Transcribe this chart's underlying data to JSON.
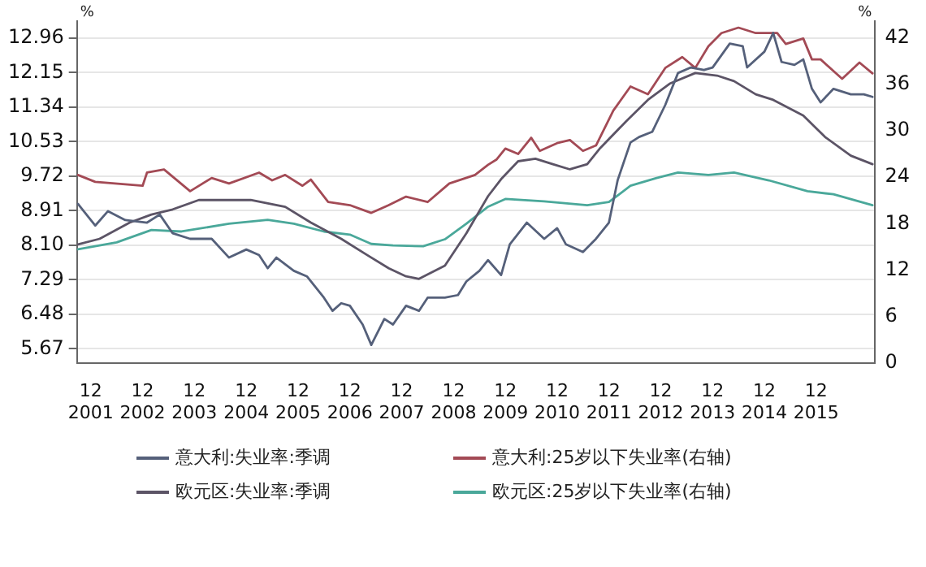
{
  "chart_data": {
    "type": "line",
    "ylabel": "%",
    "y2label": "%",
    "xlim": [
      "2001-08-25",
      "2017-01-20"
    ],
    "xticks": [
      {
        "value": "2001-12-01",
        "label": "12\n2001"
      },
      {
        "value": "2002-12-01",
        "label": "12\n2002"
      },
      {
        "value": "2003-12-01",
        "label": "12\n2003"
      },
      {
        "value": "2004-12-01",
        "label": "12\n2004"
      },
      {
        "value": "2005-12-01",
        "label": "12\n2005"
      },
      {
        "value": "2006-12-01",
        "label": "12\n2006"
      },
      {
        "value": "2007-12-01",
        "label": "12\n2007"
      },
      {
        "value": "2008-12-01",
        "label": "12\n2008"
      },
      {
        "value": "2009-12-01",
        "label": "12\n2009"
      },
      {
        "value": "2010-12-01",
        "label": "12\n2010"
      },
      {
        "value": "2011-12-01",
        "label": "12\n2011"
      },
      {
        "value": "2012-12-01",
        "label": "12\n2012"
      },
      {
        "value": "2013-12-01",
        "label": "12\n2013"
      },
      {
        "value": "2014-12-01",
        "label": "12\n2014"
      },
      {
        "value": "2015-12-01",
        "label": "12\n2015"
      }
    ],
    "ylim": [
      5.33,
      13.35
    ],
    "yticks": [
      {
        "value": 5.67,
        "label": "5.67"
      },
      {
        "value": 6.48,
        "label": "6.48"
      },
      {
        "value": 7.29,
        "label": "7.29"
      },
      {
        "value": 8.1,
        "label": "8.10"
      },
      {
        "value": 8.91,
        "label": "8.91"
      },
      {
        "value": 9.72,
        "label": "9.72"
      },
      {
        "value": 10.53,
        "label": "10.53"
      },
      {
        "value": 11.34,
        "label": "11.34"
      },
      {
        "value": 12.15,
        "label": "12.15"
      },
      {
        "value": 12.96,
        "label": "12.96"
      }
    ],
    "y2lim": [
      0,
      44.1
    ],
    "y2ticks": [
      0,
      6,
      12,
      18,
      24,
      30,
      36,
      42
    ],
    "grid": "y",
    "legend": "bottom",
    "series": [
      {
        "name": "意大利:失业率:季调",
        "color": "#55607a",
        "x": [
          "2001-09-01",
          "2002-01-01",
          "2002-04-01",
          "2002-08-01",
          "2003-01-01",
          "2003-04-01",
          "2003-07-01",
          "2003-11-01",
          "2004-04-01",
          "2004-08-01",
          "2004-12-01",
          "2005-03-01",
          "2005-05-01",
          "2005-07-01",
          "2005-11-01",
          "2006-02-01",
          "2006-06-01",
          "2006-08-01",
          "2006-10-01",
          "2006-12-01",
          "2007-03-01",
          "2007-05-01",
          "2007-08-01",
          "2007-10-01",
          "2008-01-01",
          "2008-04-01",
          "2008-06-01",
          "2008-10-01",
          "2009-01-01",
          "2009-03-01",
          "2009-06-01",
          "2009-08-01",
          "2009-11-01",
          "2010-01-01",
          "2010-05-01",
          "2010-09-01",
          "2010-12-01",
          "2011-02-01",
          "2011-06-01",
          "2011-09-01",
          "2011-12-01",
          "2012-02-01",
          "2012-05-01",
          "2012-07-01",
          "2012-10-01",
          "2013-01-01",
          "2013-04-01",
          "2013-07-01",
          "2013-10-01",
          "2013-12-01",
          "2014-04-01",
          "2014-07-01",
          "2014-08-01",
          "2014-12-01",
          "2015-02-01",
          "2015-04-01",
          "2015-07-01",
          "2015-09-01",
          "2015-11-01",
          "2016-01-01",
          "2016-04-01",
          "2016-08-01",
          "2016-11-01",
          "2017-01-01"
        ],
        "values": [
          9.07,
          8.56,
          8.9,
          8.69,
          8.63,
          8.82,
          8.38,
          8.25,
          8.25,
          7.81,
          8.0,
          7.87,
          7.56,
          7.81,
          7.5,
          7.37,
          6.87,
          6.56,
          6.74,
          6.68,
          6.24,
          5.76,
          6.37,
          6.24,
          6.68,
          6.56,
          6.87,
          6.87,
          6.93,
          7.25,
          7.5,
          7.75,
          7.4,
          8.12,
          8.63,
          8.25,
          8.5,
          8.12,
          7.94,
          8.25,
          8.63,
          9.63,
          10.51,
          10.64,
          10.76,
          11.39,
          12.14,
          12.27,
          12.21,
          12.27,
          12.83,
          12.77,
          12.27,
          12.64,
          13.08,
          12.4,
          12.33,
          12.46,
          11.77,
          11.45,
          11.77,
          11.64,
          11.64,
          11.58
        ]
      },
      {
        "name": "意大利:25岁以下失业率(右轴)",
        "color": "#a34a55",
        "axis": "y2",
        "x": [
          "2001-09-01",
          "2002-01-01",
          "2002-12-01",
          "2003-01-01",
          "2003-05-01",
          "2003-11-01",
          "2004-04-01",
          "2004-08-01",
          "2005-03-01",
          "2005-06-01",
          "2005-09-01",
          "2006-01-01",
          "2006-03-01",
          "2006-07-01",
          "2006-12-01",
          "2007-05-01",
          "2007-09-01",
          "2008-01-01",
          "2008-06-01",
          "2008-11-01",
          "2009-05-01",
          "2009-08-01",
          "2009-10-01",
          "2009-12-01",
          "2010-03-01",
          "2010-06-01",
          "2010-08-01",
          "2010-12-01",
          "2011-03-01",
          "2011-06-01",
          "2011-09-01",
          "2012-01-01",
          "2012-05-01",
          "2012-09-01",
          "2013-01-01",
          "2013-05-01",
          "2013-08-01",
          "2013-11-01",
          "2014-02-01",
          "2014-06-01",
          "2014-10-01",
          "2015-03-01",
          "2015-05-01",
          "2015-09-01",
          "2015-11-01",
          "2016-01-01",
          "2016-06-01",
          "2016-10-01",
          "2017-01-01"
        ],
        "values": [
          24.3,
          23.4,
          22.9,
          24.6,
          25.0,
          22.2,
          23.9,
          23.2,
          24.6,
          23.6,
          24.3,
          22.9,
          23.7,
          20.8,
          20.4,
          19.4,
          20.4,
          21.5,
          20.8,
          23.2,
          24.3,
          25.6,
          26.3,
          27.7,
          27.0,
          29.1,
          27.4,
          28.4,
          28.8,
          27.4,
          28.1,
          32.6,
          35.7,
          34.7,
          38.1,
          39.5,
          38.1,
          40.9,
          42.6,
          43.3,
          42.6,
          42.6,
          41.2,
          41.9,
          39.2,
          39.2,
          36.7,
          38.8,
          37.4
        ]
      },
      {
        "name": "欧元区:失业率:季调",
        "color": "#5c5466",
        "x": [
          "2001-09-01",
          "2002-02-01",
          "2002-09-01",
          "2003-02-01",
          "2003-07-01",
          "2004-01-01",
          "2005-01-01",
          "2005-09-01",
          "2006-03-01",
          "2006-10-01",
          "2007-04-01",
          "2007-09-01",
          "2008-01-01",
          "2008-04-01",
          "2008-10-01",
          "2009-03-01",
          "2009-08-01",
          "2009-11-01",
          "2010-03-01",
          "2010-07-01",
          "2010-11-01",
          "2011-03-01",
          "2011-07-01",
          "2011-10-01",
          "2012-04-01",
          "2012-09-01",
          "2013-02-01",
          "2013-08-01",
          "2014-01-01",
          "2014-05-01",
          "2014-10-01",
          "2015-02-01",
          "2015-09-01",
          "2016-02-01",
          "2016-08-01",
          "2017-01-01"
        ],
        "values": [
          8.12,
          8.25,
          8.63,
          8.82,
          8.94,
          9.16,
          9.16,
          9.0,
          8.63,
          8.25,
          7.87,
          7.56,
          7.37,
          7.31,
          7.62,
          8.38,
          9.25,
          9.65,
          10.07,
          10.13,
          10.0,
          9.88,
          10.0,
          10.38,
          11.01,
          11.51,
          11.89,
          12.14,
          12.08,
          11.95,
          11.64,
          11.51,
          11.14,
          10.64,
          10.2,
          10.0
        ]
      },
      {
        "name": "欧元区:25岁以下失业率(右轴)",
        "color": "#4aa89a",
        "axis": "y2",
        "x": [
          "2001-09-01",
          "2002-06-01",
          "2003-02-01",
          "2003-09-01",
          "2004-08-01",
          "2005-05-01",
          "2005-11-01",
          "2006-06-01",
          "2006-12-01",
          "2007-05-01",
          "2007-10-01",
          "2008-05-01",
          "2008-10-01",
          "2009-03-01",
          "2009-08-01",
          "2009-12-01",
          "2010-09-01",
          "2011-07-01",
          "2011-12-01",
          "2012-05-01",
          "2012-11-01",
          "2013-04-01",
          "2013-11-01",
          "2014-05-01",
          "2015-01-01",
          "2015-10-01",
          "2016-04-01",
          "2017-01-01"
        ],
        "values": [
          14.7,
          15.6,
          17.2,
          17.0,
          18.0,
          18.5,
          18.0,
          17.0,
          16.6,
          15.4,
          15.2,
          15.1,
          16.0,
          18.0,
          20.2,
          21.2,
          20.9,
          20.4,
          20.8,
          22.9,
          23.9,
          24.6,
          24.3,
          24.6,
          23.6,
          22.2,
          21.8,
          20.4
        ]
      }
    ]
  }
}
